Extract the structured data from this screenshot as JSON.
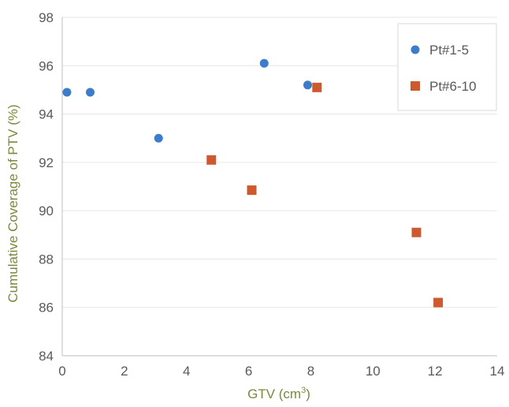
{
  "chart_data": {
    "type": "scatter",
    "title": "",
    "xlabel": "GTV (cm3)",
    "xlabel_parts": {
      "main": "GTV (cm",
      "sup": "3",
      "end": ")"
    },
    "ylabel": "Cumulative Coverage of PTV (%)",
    "xlim": [
      0,
      14
    ],
    "ylim": [
      84,
      98
    ],
    "xticks": [
      0,
      2,
      4,
      6,
      8,
      10,
      12,
      14
    ],
    "yticks": [
      84,
      86,
      88,
      90,
      92,
      94,
      96,
      98
    ],
    "grid": "horizontal",
    "legend_position": "top-right",
    "series": [
      {
        "name": "Pt#1-5",
        "marker": "circle",
        "color": "#3d7cc9",
        "x": [
          0.15,
          0.9,
          3.1,
          6.5,
          7.9
        ],
        "y": [
          94.9,
          94.9,
          93.0,
          96.1,
          95.2
        ]
      },
      {
        "name": "Pt#6-10",
        "marker": "square",
        "color": "#cc5a2e",
        "x": [
          4.8,
          6.1,
          8.2,
          11.4,
          12.1
        ],
        "y": [
          92.1,
          90.85,
          95.1,
          89.1,
          86.2
        ]
      }
    ]
  }
}
